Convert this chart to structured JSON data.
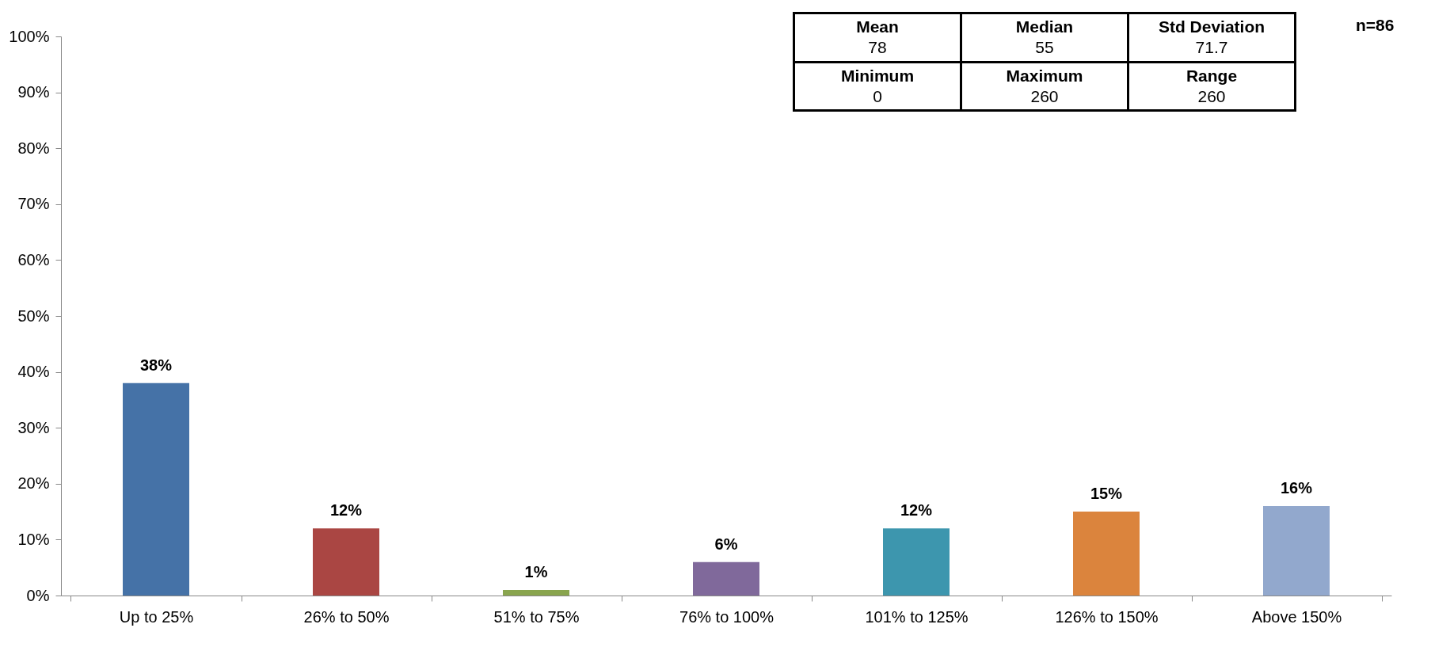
{
  "chart_data": {
    "type": "bar",
    "categories": [
      "Up to 25%",
      "26% to 50%",
      "51% to 75%",
      "76% to 100%",
      "101% to 125%",
      "126% to 150%",
      "Above 150%"
    ],
    "values": [
      38,
      12,
      1,
      6,
      12,
      15,
      16
    ],
    "colors": [
      "#4572a7",
      "#aa4643",
      "#89a54e",
      "#80699b",
      "#3d96ae",
      "#db843d",
      "#92a8cd"
    ],
    "value_labels": [
      "38%",
      "12%",
      "1%",
      "6%",
      "12%",
      "15%",
      "16%"
    ],
    "ylim": [
      0,
      100
    ],
    "yticks": [
      {
        "value": 0,
        "label": "0%"
      },
      {
        "value": 10,
        "label": "10%"
      },
      {
        "value": 20,
        "label": "20%"
      },
      {
        "value": 30,
        "label": "30%"
      },
      {
        "value": 40,
        "label": "40%"
      },
      {
        "value": 50,
        "label": "50%"
      },
      {
        "value": 60,
        "label": "60%"
      },
      {
        "value": 70,
        "label": "70%"
      },
      {
        "value": 80,
        "label": "80%"
      },
      {
        "value": 90,
        "label": "90%"
      },
      {
        "value": 100,
        "label": "100%"
      }
    ],
    "grid": false,
    "legend": false,
    "annotations": [
      "Mean",
      "78",
      "Median",
      "55",
      "Std Deviation",
      "71.7",
      "Minimum",
      "0",
      "Maximum",
      "260",
      "Range",
      "260",
      "n=86"
    ]
  }
}
